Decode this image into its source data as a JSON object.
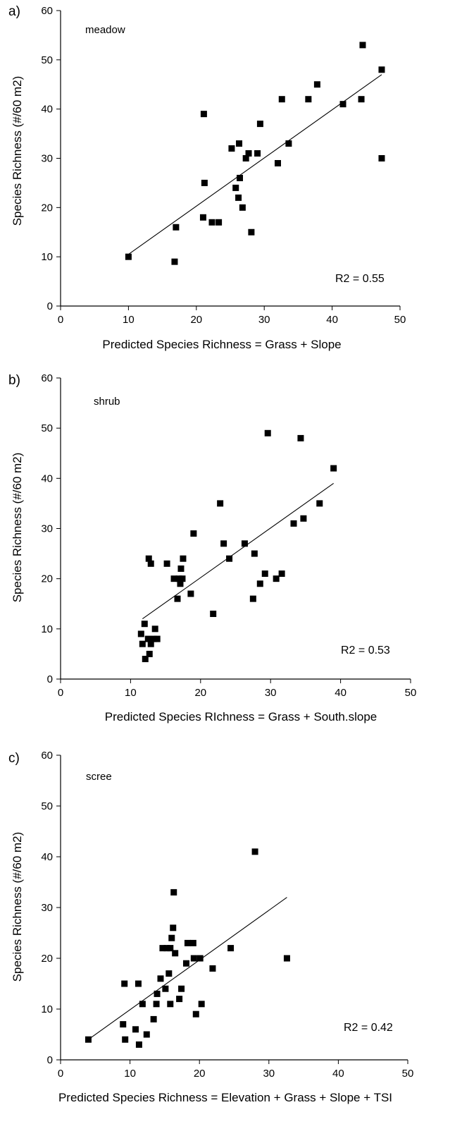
{
  "chart_data": [
    {
      "type": "scatter",
      "panel_label": "a)",
      "habitat": "meadow",
      "xlabel": "Predicted Species Richness = Grass + Slope",
      "ylabel": "Species Richness (#/60 m2)",
      "xlim": [
        0,
        50
      ],
      "ylim": [
        0,
        60
      ],
      "xticks": [
        0,
        10,
        20,
        30,
        40,
        50
      ],
      "yticks": [
        0,
        10,
        20,
        30,
        40,
        50,
        60
      ],
      "r2_text": "R2 = 0.55",
      "grid": false,
      "points": [
        {
          "x": 10,
          "y": 10
        },
        {
          "x": 16.8,
          "y": 9
        },
        {
          "x": 17,
          "y": 16
        },
        {
          "x": 21,
          "y": 18
        },
        {
          "x": 21.2,
          "y": 25
        },
        {
          "x": 21.1,
          "y": 39
        },
        {
          "x": 22.3,
          "y": 17
        },
        {
          "x": 23.3,
          "y": 17
        },
        {
          "x": 25.2,
          "y": 32
        },
        {
          "x": 25.8,
          "y": 24
        },
        {
          "x": 26.2,
          "y": 22
        },
        {
          "x": 26.3,
          "y": 33
        },
        {
          "x": 26.4,
          "y": 26
        },
        {
          "x": 26.8,
          "y": 20
        },
        {
          "x": 27.3,
          "y": 30
        },
        {
          "x": 27.7,
          "y": 31
        },
        {
          "x": 28.1,
          "y": 15
        },
        {
          "x": 29,
          "y": 31
        },
        {
          "x": 29.4,
          "y": 37
        },
        {
          "x": 32,
          "y": 29
        },
        {
          "x": 32.6,
          "y": 42
        },
        {
          "x": 33.6,
          "y": 33
        },
        {
          "x": 36.5,
          "y": 42
        },
        {
          "x": 37.8,
          "y": 45
        },
        {
          "x": 41.6,
          "y": 41
        },
        {
          "x": 44.3,
          "y": 42
        },
        {
          "x": 44.5,
          "y": 53
        },
        {
          "x": 47.3,
          "y": 30
        },
        {
          "x": 47.3,
          "y": 48
        }
      ],
      "fit_line": [
        [
          10,
          10.5
        ],
        [
          47.3,
          47
        ]
      ]
    },
    {
      "type": "scatter",
      "panel_label": "b)",
      "habitat": "shrub",
      "xlabel": "Predicted Species RIchness = Grass + South.slope",
      "ylabel": "Species Richness (#/60 m2)",
      "xlim": [
        0,
        50
      ],
      "ylim": [
        0,
        60
      ],
      "xticks": [
        0,
        10,
        20,
        30,
        40,
        50
      ],
      "yticks": [
        0,
        10,
        20,
        30,
        40,
        50,
        60
      ],
      "r2_text": "R2 = 0.53",
      "grid": false,
      "points": [
        {
          "x": 11.5,
          "y": 9
        },
        {
          "x": 11.7,
          "y": 7
        },
        {
          "x": 12,
          "y": 11
        },
        {
          "x": 12.1,
          "y": 4
        },
        {
          "x": 12.5,
          "y": 8
        },
        {
          "x": 12.7,
          "y": 5
        },
        {
          "x": 12.6,
          "y": 24
        },
        {
          "x": 12.9,
          "y": 7
        },
        {
          "x": 12.9,
          "y": 23
        },
        {
          "x": 13.3,
          "y": 8
        },
        {
          "x": 13.5,
          "y": 10
        },
        {
          "x": 13.8,
          "y": 8
        },
        {
          "x": 15.2,
          "y": 23
        },
        {
          "x": 16.2,
          "y": 20
        },
        {
          "x": 16.7,
          "y": 16
        },
        {
          "x": 16.9,
          "y": 20
        },
        {
          "x": 17.1,
          "y": 19
        },
        {
          "x": 17.2,
          "y": 22
        },
        {
          "x": 17.4,
          "y": 20
        },
        {
          "x": 17.5,
          "y": 24
        },
        {
          "x": 18.6,
          "y": 17
        },
        {
          "x": 19,
          "y": 29
        },
        {
          "x": 21.8,
          "y": 13
        },
        {
          "x": 22.8,
          "y": 35
        },
        {
          "x": 23.3,
          "y": 27
        },
        {
          "x": 24.1,
          "y": 24
        },
        {
          "x": 26.3,
          "y": 27
        },
        {
          "x": 27.5,
          "y": 16
        },
        {
          "x": 27.7,
          "y": 25
        },
        {
          "x": 28.5,
          "y": 19
        },
        {
          "x": 29.2,
          "y": 21
        },
        {
          "x": 29.6,
          "y": 49
        },
        {
          "x": 30.8,
          "y": 20
        },
        {
          "x": 31.6,
          "y": 21
        },
        {
          "x": 33.3,
          "y": 31
        },
        {
          "x": 34.3,
          "y": 48
        },
        {
          "x": 34.7,
          "y": 32
        },
        {
          "x": 37,
          "y": 35
        },
        {
          "x": 39,
          "y": 42
        }
      ],
      "fit_line": [
        [
          11.7,
          12
        ],
        [
          39,
          39
        ]
      ]
    },
    {
      "type": "scatter",
      "panel_label": "c)",
      "habitat": "scree",
      "xlabel": "Predicted Species Richness = Elevation + Grass + Slope + TSI",
      "ylabel": "Species Richness (#/60 m2)",
      "xlim": [
        0,
        50
      ],
      "ylim": [
        0,
        60
      ],
      "xticks": [
        0,
        10,
        20,
        30,
        40,
        50
      ],
      "yticks": [
        0,
        10,
        20,
        30,
        40,
        50,
        60
      ],
      "r2_text": "R2 = 0.42",
      "grid": false,
      "points": [
        {
          "x": 4,
          "y": 4
        },
        {
          "x": 9,
          "y": 7
        },
        {
          "x": 9.2,
          "y": 15
        },
        {
          "x": 9.3,
          "y": 4
        },
        {
          "x": 10.8,
          "y": 6
        },
        {
          "x": 11.2,
          "y": 15
        },
        {
          "x": 11.3,
          "y": 3
        },
        {
          "x": 11.8,
          "y": 11
        },
        {
          "x": 12.4,
          "y": 5
        },
        {
          "x": 13.4,
          "y": 8
        },
        {
          "x": 13.8,
          "y": 11
        },
        {
          "x": 13.9,
          "y": 13
        },
        {
          "x": 14.4,
          "y": 16
        },
        {
          "x": 14.7,
          "y": 22
        },
        {
          "x": 15.1,
          "y": 14
        },
        {
          "x": 15.3,
          "y": 22
        },
        {
          "x": 15.6,
          "y": 17
        },
        {
          "x": 15.8,
          "y": 22
        },
        {
          "x": 15.8,
          "y": 11
        },
        {
          "x": 16,
          "y": 24
        },
        {
          "x": 16.2,
          "y": 26
        },
        {
          "x": 16.3,
          "y": 33
        },
        {
          "x": 16.5,
          "y": 21
        },
        {
          "x": 17.1,
          "y": 12
        },
        {
          "x": 17.4,
          "y": 14
        },
        {
          "x": 18.1,
          "y": 19
        },
        {
          "x": 18.3,
          "y": 23
        },
        {
          "x": 19.1,
          "y": 23
        },
        {
          "x": 19.2,
          "y": 20
        },
        {
          "x": 19.5,
          "y": 9
        },
        {
          "x": 20.1,
          "y": 20
        },
        {
          "x": 20.3,
          "y": 11
        },
        {
          "x": 21.9,
          "y": 18
        },
        {
          "x": 24.5,
          "y": 22
        },
        {
          "x": 28,
          "y": 41
        },
        {
          "x": 32.6,
          "y": 20
        }
      ],
      "fit_line": [
        [
          4,
          4
        ],
        [
          32.6,
          32
        ]
      ]
    }
  ]
}
